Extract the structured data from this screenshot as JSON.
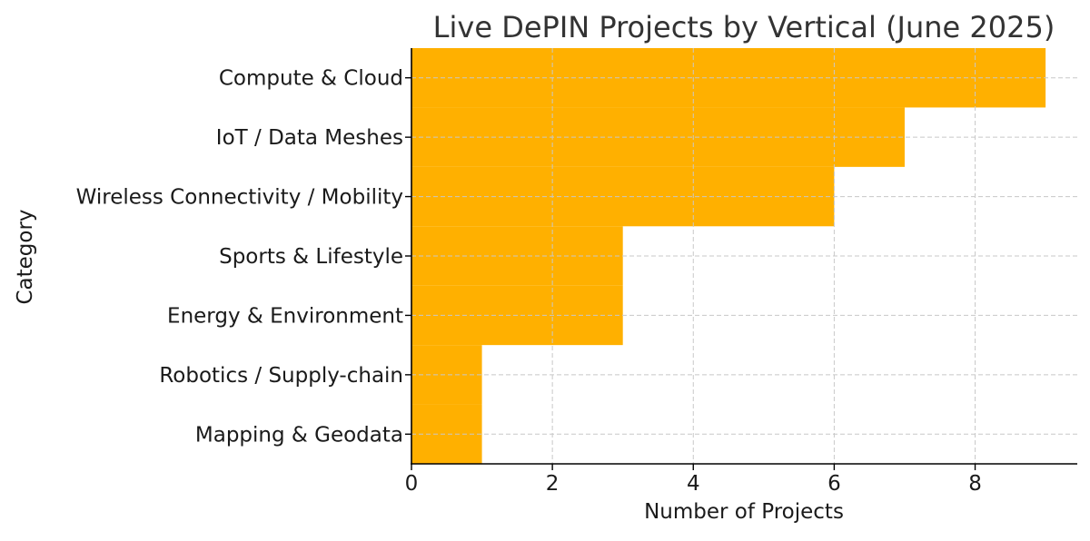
{
  "chart_data": {
    "type": "bar",
    "orientation": "horizontal",
    "title": "Live DePIN Projects by Vertical (June 2025)",
    "xlabel": "Number of Projects",
    "ylabel": "Category",
    "categories": [
      "Mapping & Geodata",
      "Robotics / Supply-chain",
      "Energy & Environment",
      "Sports & Lifestyle",
      "Wireless Connectivity / Mobility",
      "IoT / Data Meshes",
      "Compute & Cloud"
    ],
    "values": [
      1,
      1,
      3,
      3,
      6,
      7,
      9
    ],
    "xticks": [
      0,
      2,
      4,
      6,
      8
    ],
    "xlim": [
      0,
      9.45
    ],
    "grid": true,
    "bar_color": "#FFB000"
  }
}
